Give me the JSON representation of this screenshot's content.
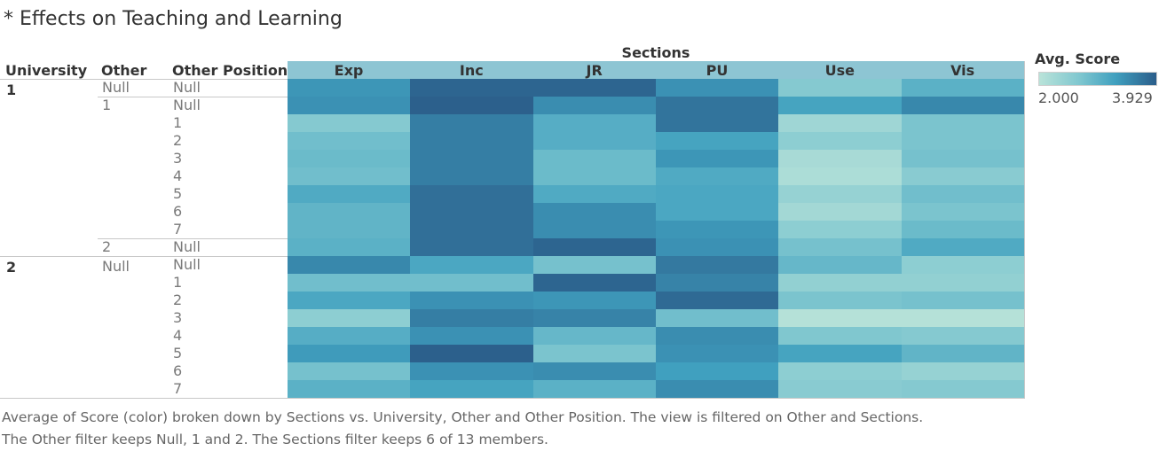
{
  "title": "* Effects on Teaching and Learning",
  "column_headers": {
    "university": "University",
    "other": "Other",
    "other_position": "Other Position",
    "sections": "Sections"
  },
  "legend": {
    "title": "Avg. Score",
    "min_label": "2.000",
    "max_label": "3.929",
    "color_low": "#b9e3d9",
    "color_high": "#2b5d8a"
  },
  "caption": {
    "line1": "Average of Score (color) broken down by Sections vs. University, Other and Other Position. The view is filtered on Other and Sections.",
    "line2": "The Other filter keeps Null, 1 and 2. The Sections filter keeps 6 of 13 members."
  },
  "chart_data": {
    "type": "heatmap",
    "title": "* Effects on Teaching and Learning",
    "columns": [
      "Exp",
      "Inc",
      "JR",
      "PU",
      "Use",
      "Vis"
    ],
    "row_labels": {
      "university": [
        "1",
        "",
        "",
        "",
        "",
        "",
        "",
        "",
        "",
        "",
        "2",
        "",
        "",
        "",
        "",
        "",
        "",
        ""
      ],
      "other": [
        "Null",
        "1",
        "",
        "",
        "",
        "",
        "",
        "",
        "",
        "2",
        "Null",
        "",
        "",
        "",
        "",
        "",
        "",
        ""
      ],
      "other_position": [
        "Null",
        "Null",
        "1",
        "2",
        "3",
        "4",
        "5",
        "6",
        "7",
        "Null",
        "Null",
        "1",
        "2",
        "3",
        "4",
        "5",
        "6",
        "7"
      ]
    },
    "color_range": [
      2.0,
      3.929
    ],
    "values": [
      [
        3.35,
        3.85,
        3.85,
        3.4,
        2.6,
        3.0
      ],
      [
        3.4,
        3.9,
        3.45,
        3.7,
        3.2,
        3.5
      ],
      [
        2.6,
        3.6,
        3.05,
        3.7,
        2.3,
        2.7
      ],
      [
        2.8,
        3.6,
        3.05,
        3.2,
        2.5,
        2.7
      ],
      [
        2.85,
        3.6,
        2.85,
        3.35,
        2.2,
        2.75
      ],
      [
        2.8,
        3.6,
        2.85,
        3.1,
        2.15,
        2.55
      ],
      [
        3.1,
        3.75,
        3.1,
        3.15,
        2.4,
        2.8
      ],
      [
        2.95,
        3.75,
        3.45,
        3.15,
        2.25,
        2.7
      ],
      [
        2.95,
        3.75,
        3.45,
        3.35,
        2.5,
        2.85
      ],
      [
        3.0,
        3.75,
        3.85,
        3.4,
        2.75,
        3.1
      ],
      [
        3.5,
        3.15,
        2.75,
        3.65,
        2.9,
        2.5
      ],
      [
        2.8,
        2.8,
        3.85,
        3.55,
        2.45,
        2.45
      ],
      [
        3.15,
        3.4,
        3.35,
        3.8,
        2.7,
        2.75
      ],
      [
        2.5,
        3.6,
        3.55,
        2.8,
        2.05,
        2.05
      ],
      [
        3.05,
        3.4,
        2.9,
        3.45,
        2.65,
        2.6
      ],
      [
        3.3,
        3.9,
        2.7,
        3.4,
        3.2,
        2.95
      ],
      [
        2.75,
        3.4,
        3.45,
        3.25,
        2.5,
        2.4
      ],
      [
        3.0,
        3.2,
        3.0,
        3.45,
        2.55,
        2.6
      ]
    ]
  }
}
